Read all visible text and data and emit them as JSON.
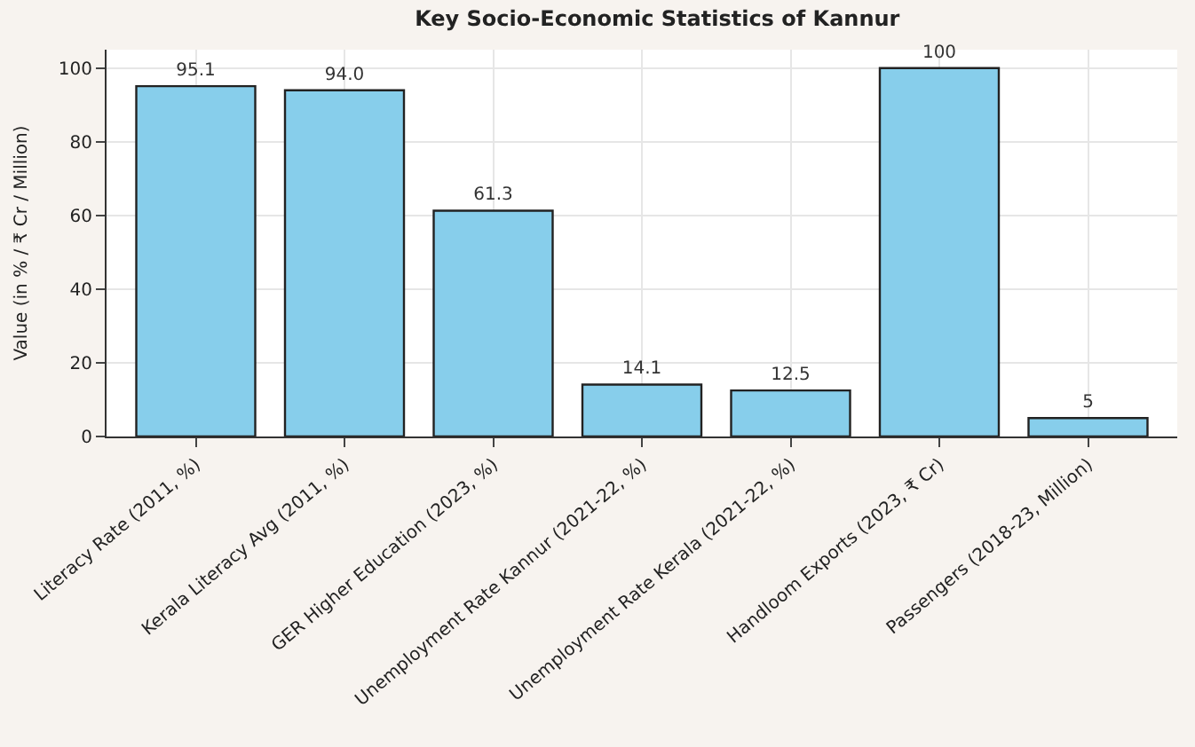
{
  "chart_data": {
    "type": "bar",
    "title": "Key Socio-Economic Statistics of Kannur",
    "ylabel": "Value (in % / ₹ Cr / Million)",
    "categories": [
      "Literacy Rate (2011, %)",
      "Kerala Literacy Avg (2011, %)",
      "GER Higher Education (2023, %)",
      "Unemployment Rate Kannur (2021-22, %)",
      "Unemployment Rate Kerala (2021-22, %)",
      "Handloom Exports (2023, ₹ Cr)",
      "Passengers (2018-23, Million)"
    ],
    "values": [
      95.1,
      94.0,
      61.3,
      14.1,
      12.5,
      100,
      5
    ],
    "value_labels": [
      "95.1",
      "94.0",
      "61.3",
      "14.1",
      "12.5",
      "100",
      "5"
    ],
    "color": "#87ceeb",
    "ylim": [
      0,
      105
    ],
    "yticks": [
      0,
      20,
      40,
      60,
      80,
      100
    ],
    "grid": true
  }
}
